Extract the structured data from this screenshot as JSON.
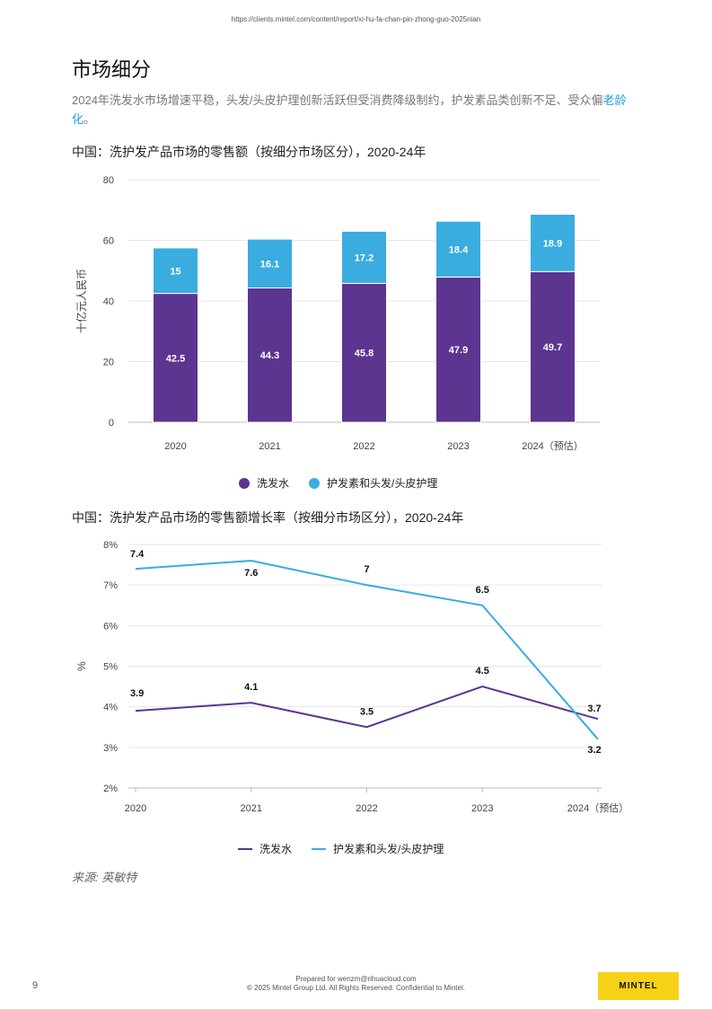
{
  "header": {
    "url": "https://clients.mintel.com/content/report/xi-hu-fa-chan-pin-zhong-guo-2025nian"
  },
  "page": {
    "title": "市场细分",
    "subtitle_main": "2024年洗发水市场增速平稳，头发/头皮护理创新活跃但受消费降级制约，护发素品类创新不足、受众偏",
    "subtitle_link": "老龄化",
    "subtitle_end": "。"
  },
  "colors": {
    "shampoo": "#5b3590",
    "conditioner": "#3aace0",
    "brand": "#f7d117"
  },
  "chart_data": [
    {
      "type": "bar",
      "stacked": true,
      "title": "中国：洗护发产品市场的零售额（按细分市场区分），2020-24年",
      "ylabel": "十亿元人民币",
      "ylim": [
        0,
        80
      ],
      "yticks": [
        "0",
        "20",
        "40",
        "60",
        "80"
      ],
      "categories": [
        "2020",
        "2021",
        "2022",
        "2023",
        "2024（预估）"
      ],
      "series": [
        {
          "name": "洗发水",
          "values": [
            42.5,
            44.3,
            45.8,
            47.9,
            49.7
          ],
          "labels": [
            "42.5",
            "44.3",
            "45.8",
            "47.9",
            "49.7"
          ]
        },
        {
          "name": "护发素和头发/头皮护理",
          "values": [
            15,
            16.1,
            17.2,
            18.4,
            18.9
          ],
          "labels": [
            "15",
            "16.1",
            "17.2",
            "18.4",
            "18.9"
          ]
        }
      ],
      "grid": true,
      "legend": "bottom"
    },
    {
      "type": "line",
      "title": "中国：洗护发产品市场的零售额增长率（按细分市场区分），2020-24年",
      "ylabel": "%",
      "ylim": [
        2,
        8
      ],
      "yticks": [
        "2%",
        "3%",
        "4%",
        "5%",
        "6%",
        "7%",
        "8%"
      ],
      "categories": [
        "2020",
        "2021",
        "2022",
        "2023",
        "2024（预估）"
      ],
      "series": [
        {
          "name": "洗发水",
          "values": [
            3.9,
            4.1,
            3.5,
            4.5,
            3.7
          ],
          "labels": [
            "3.9",
            "4.1",
            "3.5",
            "4.5",
            "3.7"
          ]
        },
        {
          "name": "护发素和头发/头皮护理",
          "values": [
            7.4,
            7.6,
            7,
            6.5,
            3.2
          ],
          "labels": [
            "7.4",
            "7.6",
            "7",
            "6.5",
            "3.2"
          ]
        }
      ],
      "grid": true,
      "legend": "bottom"
    }
  ],
  "source": "来源: 英敏特",
  "footer": {
    "page_number": "9",
    "prepared": "Prepared for wenzm@rihuacloud.com",
    "copyright": "© 2025 Mintel Group Ltd. All Rights Reserved. Confidential to Mintel.",
    "brand": "MINTEL"
  }
}
